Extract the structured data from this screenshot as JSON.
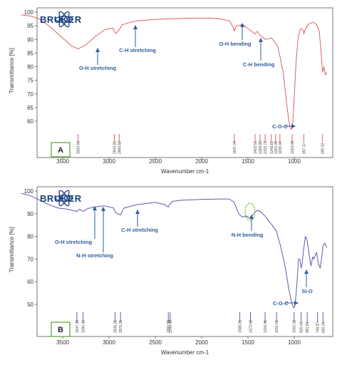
{
  "chart_data": [
    {
      "type": "line",
      "panel": "A",
      "logo": "BRUKER",
      "xlabel": "Wavenumber cm-1",
      "ylabel": "Transmittance [%]",
      "xlim": [
        3950,
        650
      ],
      "ylim": [
        40,
        100
      ],
      "x_ticks": [
        3500,
        3000,
        2500,
        2000,
        1500,
        1000
      ],
      "y_ticks": [
        60,
        65,
        70,
        75,
        80,
        85,
        90,
        95,
        100
      ],
      "color": "#e06060",
      "series": [
        {
          "x": [
            3950,
            3850,
            3750,
            3650,
            3550,
            3450,
            3400,
            3334,
            3250,
            3150,
            3050,
            2960,
            2943,
            2925,
            2880,
            2860,
            2800,
            2700,
            2500,
            2300,
            2100,
            1900,
            1800,
            1700,
            1660,
            1647,
            1630,
            1560,
            1480,
            1423,
            1400,
            1370,
            1310,
            1245,
            1210,
            1180,
            1150,
            1120,
            1100,
            1080,
            1060,
            1045,
            1030,
            1023,
            1015,
            1000,
            980,
            960,
            940,
            920,
            900,
            897,
            880,
            850,
            820,
            790,
            760,
            730,
            710,
            695,
            680,
            665,
            650
          ],
          "y": [
            99,
            98.6,
            97.5,
            95,
            92,
            89,
            87.5,
            86.5,
            88,
            91,
            93.5,
            94.2,
            93,
            92.2,
            94,
            95.3,
            96,
            96.8,
            97.3,
            97.6,
            97.8,
            97.8,
            97.5,
            96.8,
            94.5,
            93,
            94.8,
            95.5,
            93.5,
            92,
            93,
            91.5,
            90,
            90.5,
            89,
            87.5,
            83,
            78,
            72,
            66,
            60.5,
            57.5,
            57,
            57.5,
            60,
            69,
            82,
            90,
            93.5,
            94,
            93,
            92,
            93.8,
            95.5,
            96,
            96.2,
            95.5,
            93,
            85,
            78,
            80,
            77,
            78
          ]
        }
      ],
      "annotations": [
        {
          "text": "O-H stretching",
          "x": 3334
        },
        {
          "text": "C-H stretching",
          "x": 2943
        },
        {
          "text": "O-H bending",
          "x": 1647
        },
        {
          "text": "C-H bending",
          "x": 1423
        },
        {
          "text": "C-O-C",
          "x": 1023
        }
      ],
      "peak_labels": [
        {
          "label": "3334.93",
          "x": 3334
        },
        {
          "label": "2943.91",
          "x": 2943
        },
        {
          "label": "2890.82",
          "x": 2890
        },
        {
          "label": "1647.24",
          "x": 1647
        },
        {
          "label": "1423.51",
          "x": 1423
        },
        {
          "label": "1369.99",
          "x": 1369
        },
        {
          "label": "1315.72",
          "x": 1315
        },
        {
          "label": "1248.61",
          "x": 1248
        },
        {
          "label": "1201.45",
          "x": 1201
        },
        {
          "label": "1155.34",
          "x": 1155
        },
        {
          "label": "1023.08",
          "x": 1023
        },
        {
          "label": "897.37",
          "x": 897
        },
        {
          "label": "695.02",
          "x": 695
        }
      ]
    },
    {
      "type": "line",
      "panel": "B",
      "logo": "BRUKER",
      "xlabel": "Wavenumber cm-1",
      "ylabel": "Transmittance [%]",
      "xlim": [
        3950,
        650
      ],
      "ylim": [
        40,
        100
      ],
      "x_ticks": [
        3500,
        3000,
        2500,
        2000,
        1500,
        1000
      ],
      "y_ticks": [
        50,
        60,
        70,
        80,
        90,
        100
      ],
      "color": "#5b5ba8",
      "series": [
        {
          "x": [
            3950,
            3850,
            3750,
            3650,
            3550,
            3450,
            3400,
            3347,
            3320,
            3280,
            3230,
            3150,
            3050,
            2950,
            2935,
            2910,
            2876,
            2840,
            2700,
            2500,
            2400,
            2360,
            2340,
            2310,
            2200,
            2000,
            1800,
            1700,
            1650,
            1600,
            1588,
            1560,
            1520,
            1473,
            1440,
            1400,
            1370,
            1315,
            1280,
            1240,
            1191,
            1150,
            1100,
            1060,
            1030,
            1010,
            1002,
            990,
            970,
            955,
            940,
            926,
            915,
            900,
            880,
            860,
            840,
            820,
            800,
            790,
            760,
            740,
            720,
            700,
            690,
            670,
            650
          ],
          "y": [
            99,
            98,
            96,
            94,
            92.5,
            92,
            91.5,
            91,
            92,
            91,
            92.3,
            93,
            93.5,
            92.5,
            91,
            90,
            89.5,
            92.5,
            94,
            95,
            94,
            93,
            94.5,
            95.5,
            96,
            96.3,
            96.5,
            96.5,
            95,
            90,
            89.5,
            88.5,
            89,
            88,
            90,
            91.5,
            91,
            89,
            87,
            85,
            82,
            76,
            67,
            57,
            51,
            49,
            48.5,
            50,
            60,
            70,
            70,
            66,
            68,
            74,
            80,
            78,
            72,
            67,
            71,
            70,
            73,
            68,
            66,
            72,
            76,
            77,
            75
          ]
        }
      ],
      "annotations": [
        {
          "text": "O-H stretching",
          "x": 3347
        },
        {
          "text": "N-H stretching",
          "x": 3280
        },
        {
          "text": "C-H stretching",
          "x": 2876
        },
        {
          "text": "N-H bending",
          "x": 1588
        },
        {
          "text": "C-O-C",
          "x": 1002
        },
        {
          "text": "Si-O",
          "x": 926
        }
      ],
      "peak_labels": [
        {
          "label": "3347.39",
          "x": 3347
        },
        {
          "label": "3280.56",
          "x": 3280
        },
        {
          "label": "2935.21",
          "x": 2935
        },
        {
          "label": "2876.25",
          "x": 2876
        },
        {
          "label": "2360.99",
          "x": 2360
        },
        {
          "label": "2340.40",
          "x": 2340
        },
        {
          "label": "1588.26",
          "x": 1588
        },
        {
          "label": "1473.62",
          "x": 1473
        },
        {
          "label": "1315.45",
          "x": 1315
        },
        {
          "label": "1191.61",
          "x": 1191
        },
        {
          "label": "1002.12",
          "x": 1002
        },
        {
          "label": "926.49",
          "x": 926
        },
        {
          "label": "860.69",
          "x": 860
        },
        {
          "label": "749.87",
          "x": 749
        },
        {
          "label": "690.39",
          "x": 690
        }
      ]
    }
  ]
}
